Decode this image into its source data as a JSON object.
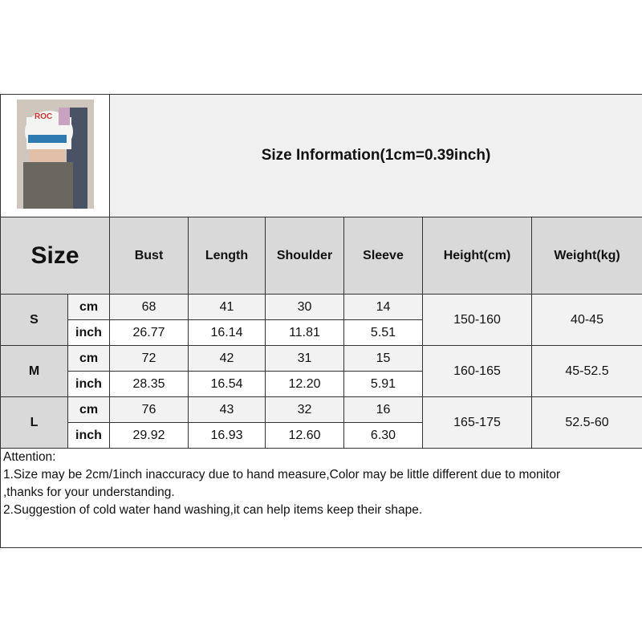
{
  "title": "Size Information(1cm=0.39inch)",
  "product_image": "product-photo",
  "headers": {
    "size": "Size",
    "columns": [
      "Bust",
      "Length",
      "Shoulder",
      "Sleeve",
      "Height(cm)",
      "Weight(kg)"
    ]
  },
  "units": {
    "cm": "cm",
    "inch": "inch"
  },
  "rows": [
    {
      "size": "S",
      "cm": [
        "68",
        "41",
        "30",
        "14"
      ],
      "inch": [
        "26.77",
        "16.14",
        "11.81",
        "5.51"
      ],
      "height": "150-160",
      "weight": "40-45"
    },
    {
      "size": "M",
      "cm": [
        "72",
        "42",
        "31",
        "15"
      ],
      "inch": [
        "28.35",
        "16.54",
        "12.20",
        "5.91"
      ],
      "height": "160-165",
      "weight": "45-52.5"
    },
    {
      "size": "L",
      "cm": [
        "76",
        "43",
        "32",
        "16"
      ],
      "inch": [
        "29.92",
        "16.93",
        "12.60",
        "6.30"
      ],
      "height": "165-175",
      "weight": "52.5-60"
    }
  ],
  "attention": {
    "heading": "Attention:",
    "lines": [
      "1.Size may be 2cm/1inch inaccuracy due to hand measure,Color may be little different due to monitor",
      ",thanks for your understanding.",
      "2.Suggestion of cold water hand washing,it can help items keep their shape."
    ]
  }
}
